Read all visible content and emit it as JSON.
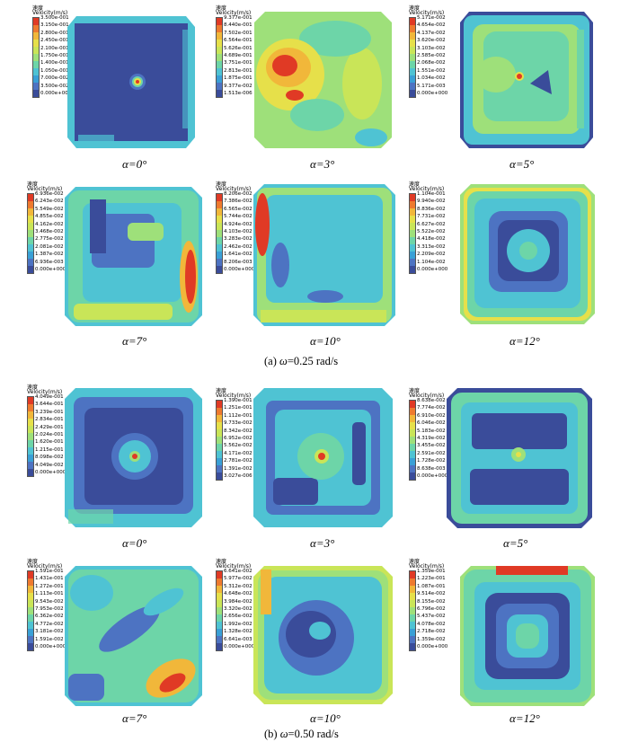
{
  "legend_title_cn": "速度",
  "legend_title_en": "Velocity(m/s)",
  "colors": [
    "#3a4c9a",
    "#4d73c2",
    "#3aa0d6",
    "#4fc3d3",
    "#6dd5a8",
    "#9ee07a",
    "#c9e558",
    "#e6e04a",
    "#f1b73a",
    "#ee7a2f",
    "#e03a25"
  ],
  "subfigures": [
    {
      "caption_prefix": "(a) ",
      "caption_symbol": "ω",
      "caption_rest": "=0.25 rad/s",
      "panels": [
        {
          "angle_label": "α=0°",
          "ticks": [
            "3.500e-001",
            "3.150e-001",
            "2.800e-001",
            "2.450e-001",
            "2.100e-001",
            "1.750e-001",
            "1.400e-001",
            "1.050e-001",
            "7.000e-002",
            "3.500e-002",
            "0.000e+000"
          ]
        },
        {
          "angle_label": "α=3°",
          "ticks": [
            "9.377e-001",
            "8.440e-001",
            "7.502e-001",
            "6.564e-001",
            "5.626e-001",
            "4.689e-001",
            "3.751e-001",
            "2.813e-001",
            "1.875e-001",
            "9.377e-002",
            "1.513e-006"
          ]
        },
        {
          "angle_label": "α=5°",
          "ticks": [
            "5.171e-002",
            "4.654e-002",
            "4.137e-002",
            "3.620e-002",
            "3.103e-002",
            "2.585e-002",
            "2.068e-002",
            "1.551e-002",
            "1.034e-002",
            "5.171e-003",
            "0.000e+000"
          ]
        },
        {
          "angle_label": "α=7°",
          "ticks": [
            "6.936e-002",
            "6.243e-002",
            "5.549e-002",
            "4.855e-002",
            "4.162e-002",
            "3.468e-002",
            "2.775e-002",
            "2.081e-002",
            "1.387e-002",
            "6.936e-003",
            "0.000e+000"
          ]
        },
        {
          "angle_label": "α=10°",
          "ticks": [
            "8.206e-002",
            "7.386e-002",
            "6.565e-002",
            "5.744e-002",
            "4.924e-002",
            "4.103e-002",
            "3.283e-002",
            "2.462e-002",
            "1.641e-002",
            "8.206e-003",
            "0.000e+000"
          ]
        },
        {
          "angle_label": "α=12°",
          "ticks": [
            "1.104e-001",
            "9.940e-002",
            "8.836e-002",
            "7.731e-002",
            "6.627e-002",
            "5.522e-002",
            "4.418e-002",
            "3.313e-002",
            "2.209e-002",
            "1.104e-002",
            "0.000e+000"
          ]
        }
      ]
    },
    {
      "caption_prefix": "(b) ",
      "caption_symbol": "ω",
      "caption_rest": "=0.50 rad/s",
      "panels": [
        {
          "angle_label": "α=0°",
          "ticks": [
            "4.049e-001",
            "3.644e-001",
            "3.239e-001",
            "2.834e-001",
            "2.429e-001",
            "2.024e-001",
            "1.620e-001",
            "1.215e-001",
            "8.098e-002",
            "4.049e-002",
            "0.000e+000"
          ]
        },
        {
          "angle_label": "α=3°",
          "ticks": [
            "1.390e-001",
            "1.251e-001",
            "1.112e-001",
            "9.733e-002",
            "8.342e-002",
            "6.952e-002",
            "5.562e-002",
            "4.171e-002",
            "2.781e-002",
            "1.391e-002",
            "3.027e-006"
          ]
        },
        {
          "angle_label": "α=5°",
          "ticks": [
            "8.638e-002",
            "7.774e-002",
            "6.910e-002",
            "6.046e-002",
            "5.183e-002",
            "4.319e-002",
            "3.455e-002",
            "2.591e-002",
            "1.728e-002",
            "8.638e-003",
            "0.000e+000"
          ]
        },
        {
          "angle_label": "α=7°",
          "ticks": [
            "1.591e-001",
            "1.431e-001",
            "1.272e-001",
            "1.113e-001",
            "9.543e-002",
            "7.953e-002",
            "6.362e-002",
            "4.772e-002",
            "3.181e-002",
            "1.591e-002",
            "0.000e+000"
          ]
        },
        {
          "angle_label": "α=10°",
          "ticks": [
            "6.641e-002",
            "5.977e-002",
            "5.312e-002",
            "4.648e-002",
            "3.984e-002",
            "3.320e-002",
            "2.656e-002",
            "1.992e-002",
            "1.328e-002",
            "6.641e-003",
            "0.000e+000"
          ]
        },
        {
          "angle_label": "α=12°",
          "ticks": [
            "1.359e-001",
            "1.223e-001",
            "1.087e-001",
            "9.514e-002",
            "8.155e-002",
            "6.796e-002",
            "5.437e-002",
            "4.078e-002",
            "2.718e-002",
            "1.359e-002",
            "0.000e+000"
          ]
        }
      ]
    }
  ]
}
